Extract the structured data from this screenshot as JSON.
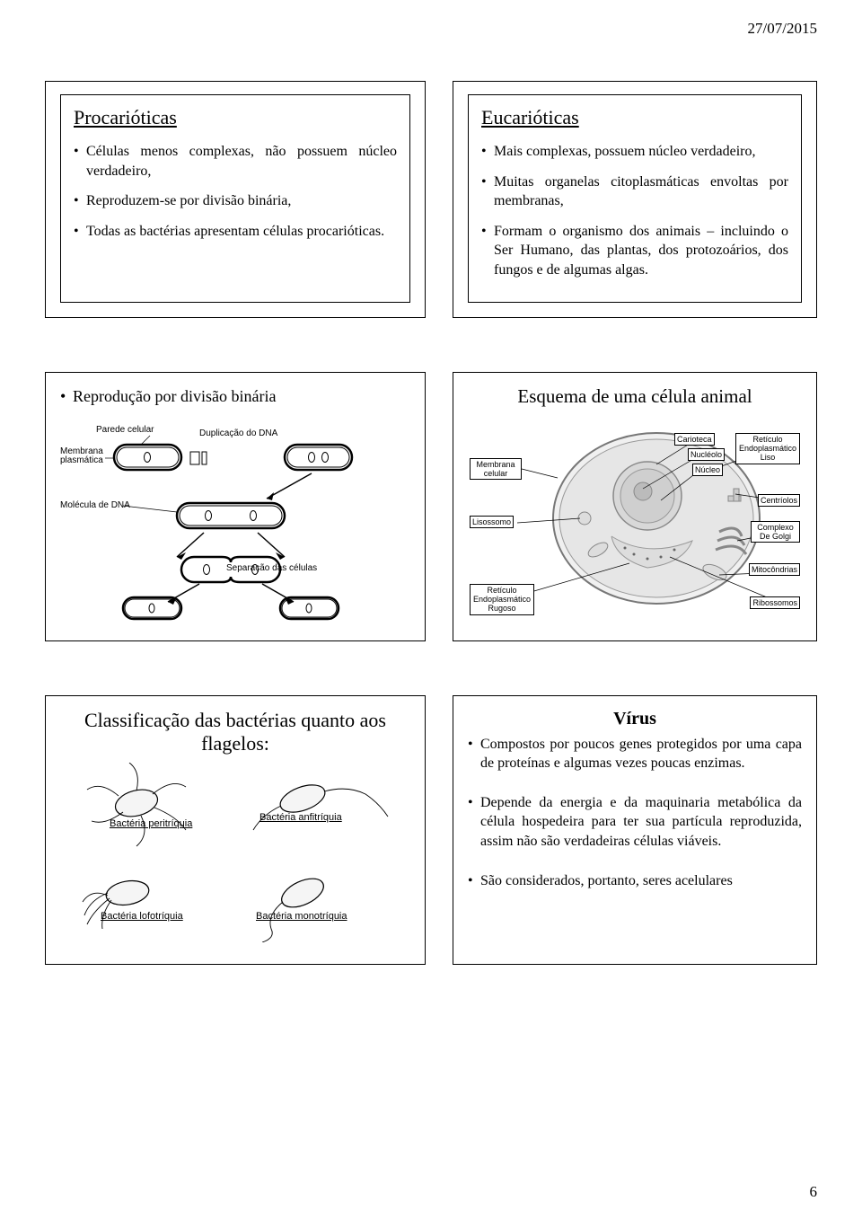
{
  "date": "27/07/2015",
  "page_number": "6",
  "slide1": {
    "title": "Procarióticas",
    "bullets": [
      "Células menos complexas, não possuem núcleo verdadeiro,",
      "Reproduzem-se por divisão binária,",
      "Todas as bactérias apresentam células procarióticas."
    ]
  },
  "slide2": {
    "title": "Eucarióticas",
    "bullets": [
      "Mais complexas, possuem núcleo verdadeiro,",
      "Muitas organelas citoplasmáticas envoltas por membranas,",
      "Formam o organismo dos animais – incluindo o Ser Humano, das plantas, dos protozoários, dos fungos e de algumas algas."
    ]
  },
  "slide3": {
    "title": "Reprodução por divisão binária",
    "labels": {
      "parede": "Parede celular",
      "membrana": "Membrana\nplasmática",
      "duplicacao": "Duplicação do DNA",
      "molecula": "Molécula de DNA",
      "separacao": "Separação das células"
    }
  },
  "slide4": {
    "title": "Esquema de uma célula animal",
    "labels": {
      "membrana": "Membrana\ncelular",
      "lisossomo": "Lisossomo",
      "reticulo_rug": "Retículo\nEndoplasmático\nRugoso",
      "carioteca": "Carioteca",
      "nucleolo": "Nucléolo",
      "nucleo": "Núcleo",
      "reticulo_liso": "Retículo\nEndoplasmático\nLiso",
      "centriolos": "Centríolos",
      "golgi": "Complexo\nDe Golgi",
      "mitocondrias": "Mitocôndrias",
      "ribossomos": "Ribossomos"
    }
  },
  "slide5": {
    "title": "Classificação das bactérias quanto aos flagelos:",
    "labels": {
      "peritriquia": "Bactéria peritríquia",
      "anfitriquia": "Bactéria anfitríquia",
      "lofotriquia": "Bactéria lofotríquia",
      "monotriquia": "Bactéria monotríquia"
    }
  },
  "slide6": {
    "title": "Vírus",
    "bullets": [
      "Compostos por poucos genes protegidos por uma capa de proteínas e algumas vezes poucas enzimas.",
      "Depende da energia e da maquinaria metabólica da célula hospedeira para ter sua partícula reproduzida, assim não são verdadeiras células viáveis.",
      "São considerados, portanto, seres acelulares"
    ]
  }
}
